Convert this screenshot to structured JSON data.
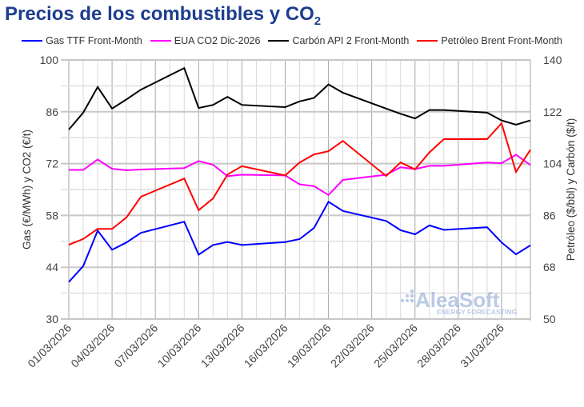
{
  "title": "Precios de los combustibles y CO",
  "title_sub": "2",
  "watermark": {
    "brand": "AleaSoft",
    "tagline": "ENERGY FORECASTING"
  },
  "chart_data": {
    "type": "line",
    "x": [
      "01/03/2026",
      "02/03/2026",
      "03/03/2026",
      "04/03/2026",
      "05/03/2026",
      "06/03/2026",
      "09/03/2026",
      "10/03/2026",
      "11/03/2026",
      "12/03/2026",
      "13/03/2026",
      "16/03/2026",
      "17/03/2026",
      "18/03/2026",
      "19/03/2026",
      "20/03/2026",
      "23/03/2026",
      "24/03/2026",
      "25/03/2026",
      "26/03/2026",
      "27/03/2026",
      "30/03/2026",
      "31/03/2026",
      "01/04/2026",
      "02/04/2026"
    ],
    "x_tick_labels": [
      "01/03/2026",
      "04/03/2026",
      "07/03/2026",
      "10/03/2026",
      "13/03/2026",
      "16/03/2026",
      "19/03/2026",
      "22/03/2026",
      "25/03/2026",
      "28/03/2026",
      "31/03/2026"
    ],
    "x_range": [
      "01/03/2026",
      "02/04/2026"
    ],
    "ylabel": "Gas (€/MWh) y CO2 (€/t)",
    "ylim": [
      30,
      100
    ],
    "yticks": [
      30,
      44,
      58,
      72,
      86,
      100
    ],
    "y2label": "Petróleo ($/bbl) y Carbón ($/t)",
    "y2lim": [
      50,
      140
    ],
    "y2ticks": [
      50,
      68,
      86,
      104,
      122,
      140
    ],
    "grid": true,
    "legend_position": "top",
    "series": [
      {
        "name": "Gas TTF Front-Month",
        "axis": "left",
        "color": "#0000ff",
        "values": [
          40.0,
          44.3,
          53.9,
          48.7,
          50.7,
          53.3,
          56.3,
          47.4,
          50.0,
          50.8,
          50.0,
          50.8,
          51.6,
          54.6,
          61.7,
          59.2,
          56.5,
          54.0,
          52.9,
          55.3,
          54.1,
          54.8,
          50.7,
          47.5,
          49.9
        ]
      },
      {
        "name": "EUA CO2 Dic-2026",
        "axis": "left",
        "color": "#ff00ff",
        "values": [
          70.3,
          70.3,
          73.1,
          70.6,
          70.2,
          70.4,
          70.8,
          72.7,
          71.7,
          68.6,
          69.0,
          68.8,
          66.4,
          65.9,
          63.5,
          67.6,
          69.0,
          71.0,
          70.5,
          71.4,
          71.4,
          72.3,
          72.1,
          74.4,
          71.6
        ]
      },
      {
        "name": "Carbón API 2 Front-Month",
        "axis": "right",
        "color": "#000000",
        "values": [
          115.8,
          121.7,
          130.6,
          123.1,
          126.3,
          129.7,
          137.2,
          123.3,
          124.4,
          127.2,
          124.4,
          123.6,
          125.6,
          126.8,
          131.5,
          128.6,
          123.1,
          121.3,
          119.7,
          122.6,
          122.6,
          121.7,
          119.0,
          117.5,
          119.0
        ]
      },
      {
        "name": "Petróleo Brent Front-Month",
        "axis": "right",
        "color": "#ff0000",
        "values": [
          75.8,
          77.8,
          81.3,
          81.3,
          85.3,
          92.5,
          98.8,
          87.8,
          91.9,
          100.2,
          103.1,
          99.9,
          104.4,
          107.2,
          108.3,
          111.9,
          99.7,
          104.4,
          102.0,
          107.9,
          112.5,
          112.5,
          118.0,
          101.1,
          108.8
        ]
      }
    ]
  }
}
